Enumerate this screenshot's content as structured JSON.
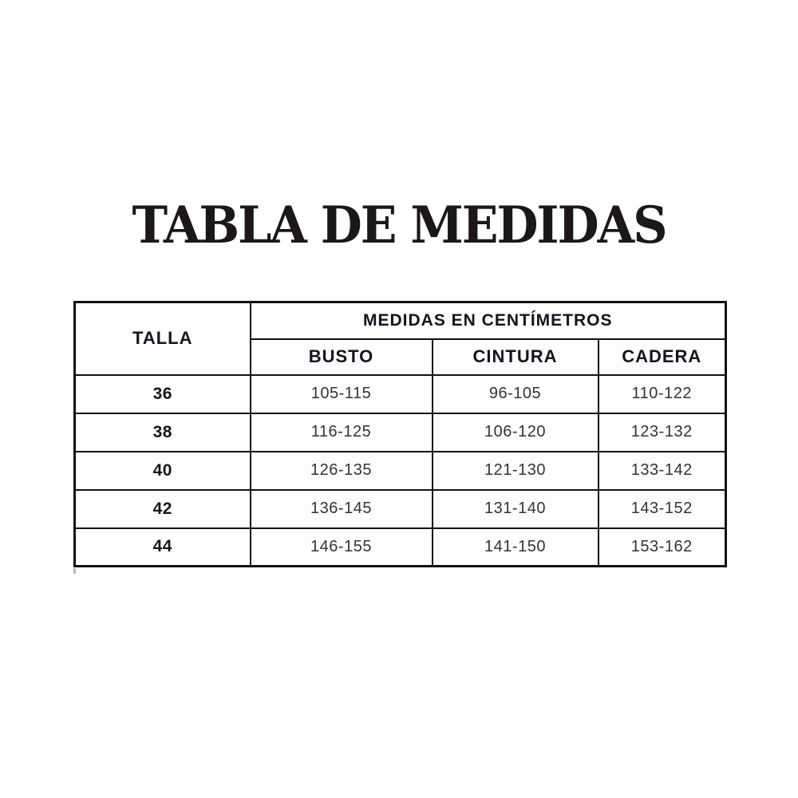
{
  "page": {
    "background": "#ffffff",
    "border_color": "#101010",
    "text_color": "#161616"
  },
  "title": {
    "text": "TABLA DE MEDIDAS"
  },
  "table": {
    "corner_header": "TALLA",
    "group_header": "MEDIDAS EN CENTÍMETROS",
    "columns": [
      "BUSTO",
      "CINTURA",
      "CADERA"
    ],
    "rows": [
      {
        "talla": "36",
        "busto": "105-115",
        "cintura": "96-105",
        "cadera": "110-122"
      },
      {
        "talla": "38",
        "busto": "116-125",
        "cintura": "106-120",
        "cadera": "123-132"
      },
      {
        "talla": "40",
        "busto": "126-135",
        "cintura": "121-130",
        "cadera": "133-142"
      },
      {
        "talla": "42",
        "busto": "136-145",
        "cintura": "131-140",
        "cadera": "143-152"
      },
      {
        "talla": "44",
        "busto": "146-155",
        "cintura": "141-150",
        "cadera": "153-162"
      }
    ]
  },
  "chart_data": {
    "type": "table",
    "title": "TABLA DE MEDIDAS",
    "units": "centímetros",
    "columns": [
      "TALLA",
      "BUSTO",
      "CINTURA",
      "CADERA"
    ],
    "rows": [
      [
        "36",
        "105-115",
        "96-105",
        "110-122"
      ],
      [
        "38",
        "116-125",
        "106-120",
        "123-132"
      ],
      [
        "40",
        "126-135",
        "121-130",
        "133-142"
      ],
      [
        "42",
        "136-145",
        "131-140",
        "143-152"
      ],
      [
        "44",
        "146-155",
        "141-150",
        "153-162"
      ]
    ]
  }
}
